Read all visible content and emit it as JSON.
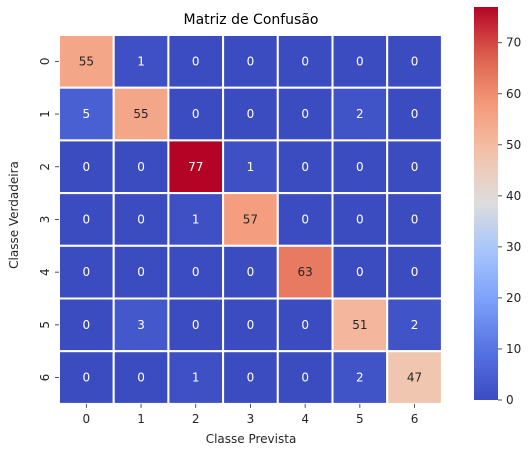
{
  "chart_data": {
    "type": "heatmap",
    "title": "Matriz de Confusão",
    "xlabel": "Classe Prevista",
    "ylabel": "Classe Verdadeira",
    "x_categories": [
      "0",
      "1",
      "2",
      "3",
      "4",
      "5",
      "6"
    ],
    "y_categories": [
      "0",
      "1",
      "2",
      "3",
      "4",
      "5",
      "6"
    ],
    "values": [
      [
        55,
        1,
        0,
        0,
        0,
        0,
        0
      ],
      [
        5,
        55,
        0,
        0,
        0,
        2,
        0
      ],
      [
        0,
        0,
        77,
        1,
        0,
        0,
        0
      ],
      [
        0,
        0,
        1,
        57,
        0,
        0,
        0
      ],
      [
        0,
        0,
        0,
        0,
        63,
        0,
        0
      ],
      [
        0,
        3,
        0,
        0,
        0,
        51,
        2
      ],
      [
        0,
        0,
        1,
        0,
        0,
        2,
        47
      ]
    ],
    "colormap": "coolwarm",
    "vmin": 0,
    "vmax": 77,
    "colorbar_ticks": [
      "0",
      "10",
      "20",
      "30",
      "40",
      "50",
      "60",
      "70"
    ],
    "cell_border_color": "#ffffff"
  }
}
